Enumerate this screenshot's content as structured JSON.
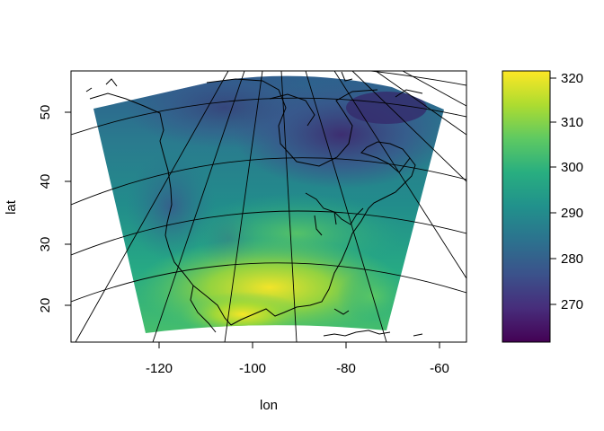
{
  "map": {
    "xlabel": "lon",
    "ylabel": "lat",
    "x_ticks": [
      "-120",
      "-100",
      "-80",
      "-60"
    ],
    "y_ticks": [
      "20",
      "30",
      "40",
      "50"
    ],
    "xlim": [
      -139,
      -56
    ],
    "ylim": [
      14,
      56
    ],
    "projection": "conic",
    "colorbar": {
      "palette": "viridis",
      "ticks": [
        "270",
        "280",
        "290",
        "300",
        "310",
        "320"
      ],
      "range": [
        262,
        321
      ],
      "colors": [
        "#440154",
        "#472d7b",
        "#3b528b",
        "#2c728e",
        "#21918c",
        "#28ae80",
        "#5ec962",
        "#addc30",
        "#fde725"
      ]
    }
  }
}
